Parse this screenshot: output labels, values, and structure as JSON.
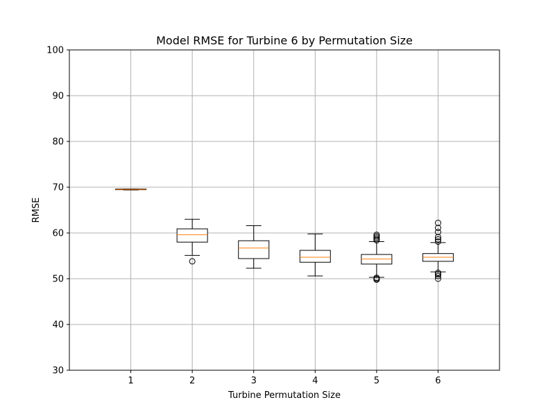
{
  "chart_data": {
    "type": "box",
    "title": "Model RMSE for Turbine 6 by Permutation Size",
    "xlabel": "Turbine Permutation Size",
    "ylabel": "RMSE",
    "ylim": [
      30,
      100
    ],
    "yticks": [
      30,
      40,
      50,
      60,
      70,
      80,
      90,
      100
    ],
    "categories": [
      "1",
      "2",
      "3",
      "4",
      "5",
      "6"
    ],
    "grid": true,
    "colors": {
      "box": "#000000",
      "median": "#ff7f0e",
      "grid": "#b0b0b0"
    },
    "boxes": [
      {
        "category": "1",
        "whislo": 69.4,
        "q1": 69.5,
        "median": 69.5,
        "q3": 69.6,
        "whishi": 69.6,
        "fliers": []
      },
      {
        "category": "2",
        "whislo": 55.1,
        "q1": 58.0,
        "median": 59.6,
        "q3": 60.9,
        "whishi": 63.0,
        "fliers": [
          53.8
        ]
      },
      {
        "category": "3",
        "whislo": 52.3,
        "q1": 54.4,
        "median": 56.7,
        "q3": 58.3,
        "whishi": 61.6,
        "fliers": []
      },
      {
        "category": "4",
        "whislo": 50.6,
        "q1": 53.6,
        "median": 54.7,
        "q3": 56.2,
        "whishi": 59.8,
        "fliers": []
      },
      {
        "category": "5",
        "whislo": 50.3,
        "q1": 53.2,
        "median": 54.3,
        "q3": 55.3,
        "whishi": 58.1,
        "fliers": [
          49.8,
          50.0,
          50.2,
          58.4,
          58.7,
          59.0,
          59.3,
          59.6
        ]
      },
      {
        "category": "6",
        "whislo": 51.5,
        "q1": 53.8,
        "median": 54.7,
        "q3": 55.5,
        "whishi": 57.9,
        "fliers": [
          50.0,
          50.6,
          51.0,
          51.3,
          58.1,
          58.6,
          59.1,
          60.2,
          61.1,
          62.2
        ]
      }
    ]
  }
}
